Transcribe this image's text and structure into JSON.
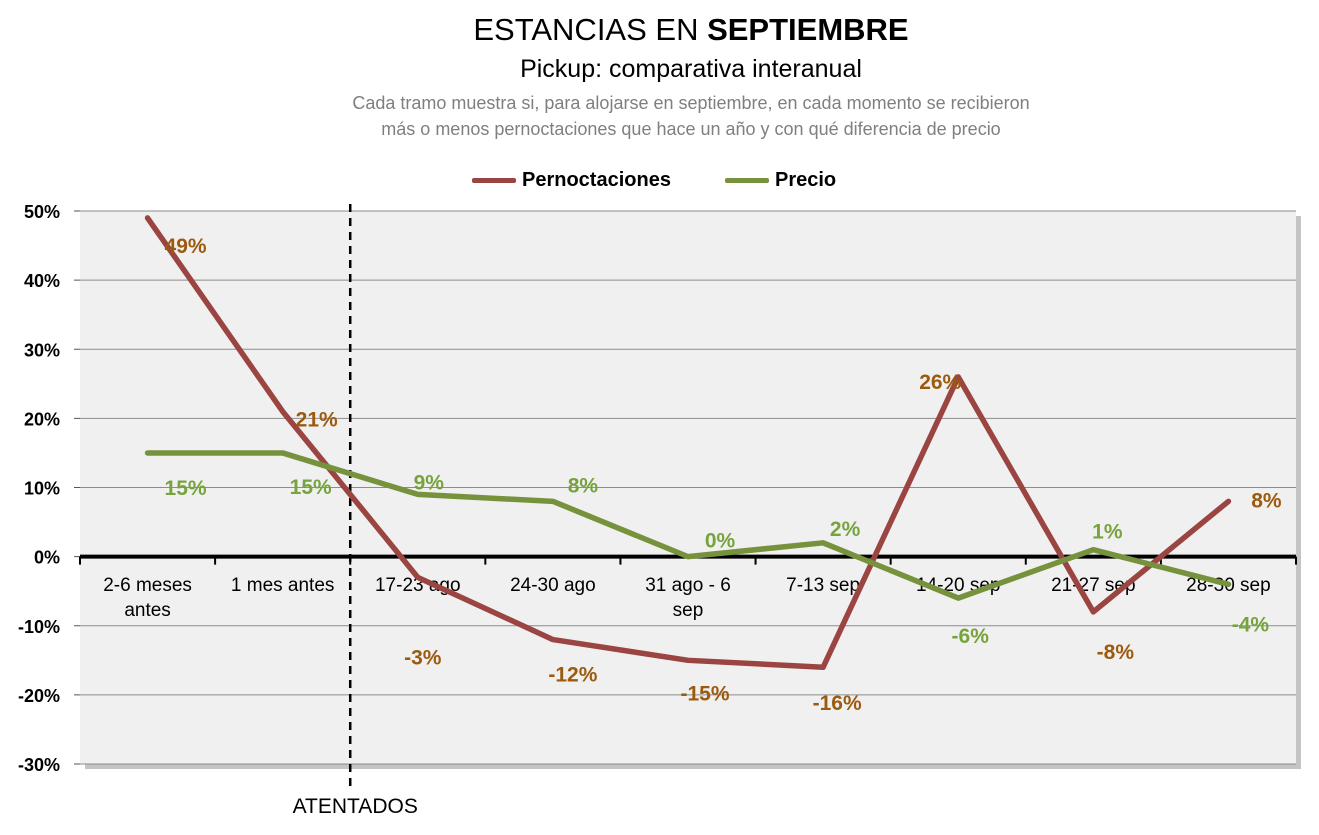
{
  "title_prefix": "ESTANCIAS EN ",
  "title_bold": "SEPTIEMBRE",
  "subtitle": "Pickup: comparativa interanual",
  "description_line1": "Cada tramo muestra si, para alojarse en septiembre, en cada momento se recibieron",
  "description_line2": "más o menos pernoctaciones que hace un año y con qué diferencia de precio",
  "colors": {
    "pernoctaciones": "#9b4542",
    "precio": "#76923c",
    "label_pernoctaciones": "#9c5a0e",
    "label_precio": "#76a33c",
    "plot_bg": "#f0f0f0",
    "grid": "#8c8c8c"
  },
  "chart_data": {
    "type": "line",
    "title": "ESTANCIAS EN SEPTIEMBRE",
    "subtitle": "Pickup: comparativa interanual",
    "categories": [
      [
        "2-6 meses",
        "antes"
      ],
      [
        "1 mes antes"
      ],
      [
        "17-23 ago"
      ],
      [
        "24-30 ago"
      ],
      [
        "31 ago - 6",
        "sep"
      ],
      [
        "7-13 sep"
      ],
      [
        "14-20 sep"
      ],
      [
        "21-27 sep"
      ],
      [
        "28-30 sep"
      ]
    ],
    "series": [
      {
        "name": "Pernoctaciones",
        "values": [
          49,
          21,
          -3,
          -12,
          -15,
          -16,
          26,
          -8,
          8
        ],
        "labels": [
          "49%",
          "21%",
          "-3%",
          "-12%",
          "-15%",
          "-16%",
          "26%",
          "-8%",
          "8%"
        ]
      },
      {
        "name": "Precio",
        "values": [
          15,
          15,
          9,
          8,
          0,
          2,
          -6,
          1,
          -4
        ],
        "labels": [
          "15%",
          "15%",
          "9%",
          "8%",
          "0%",
          "2%",
          "-6%",
          "1%",
          "-4%"
        ]
      }
    ],
    "ylim": [
      -30,
      50
    ],
    "yticks": [
      50,
      40,
      30,
      20,
      10,
      0,
      -10,
      -20,
      -30
    ],
    "ytick_labels": [
      "50%",
      "40%",
      "30%",
      "20%",
      "10%",
      "0%",
      "-10%",
      "-20%",
      "-30%"
    ],
    "legend_position": "top-center",
    "grid": true,
    "annotation": {
      "text": "ATENTADOS",
      "position": "between 1 mes antes and 17-23 ago"
    }
  }
}
